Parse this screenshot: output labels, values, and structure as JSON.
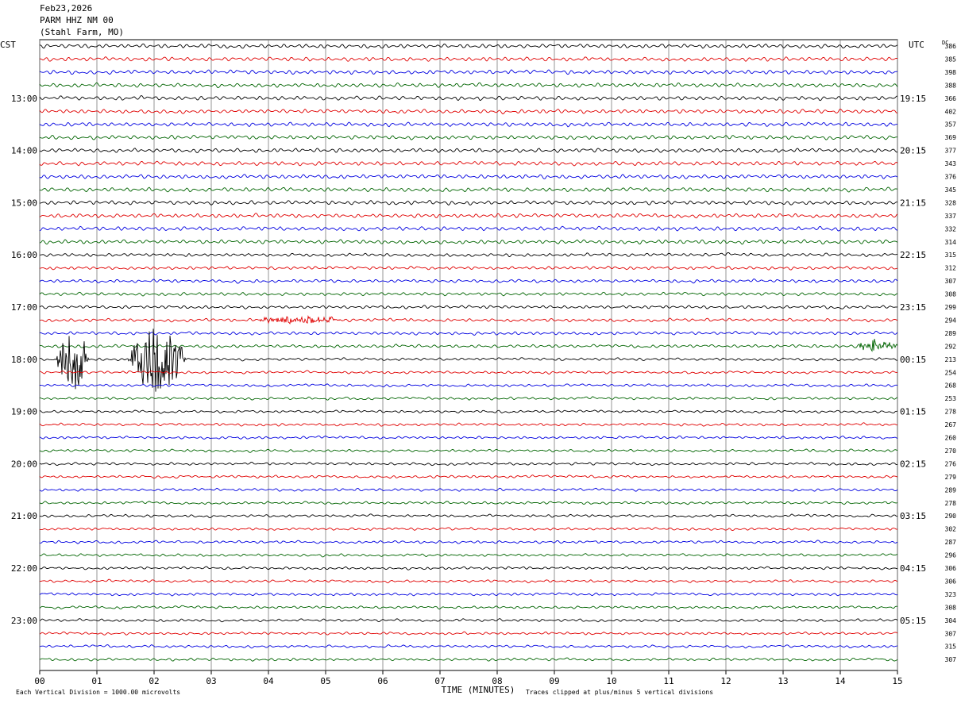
{
  "header": {
    "date": "Feb23,2026",
    "station": "PARM HHZ NM 00",
    "location": "(Stahl Farm, MO)"
  },
  "left_axis_title": "CST",
  "right_axis_title": "UTC",
  "dc_title": "DC",
  "chart_data": {
    "type": "line",
    "title": "",
    "xlabel": "TIME (MINUTES)",
    "xlim": [
      0,
      15
    ],
    "x_ticks": [
      "00",
      "01",
      "02",
      "03",
      "04",
      "05",
      "06",
      "07",
      "08",
      "09",
      "10",
      "11",
      "12",
      "13",
      "14",
      "15"
    ],
    "traces_per_hour": 4,
    "minutes_per_trace": 15,
    "trace_colors": [
      "#000000",
      "#e00000",
      "#0000e0",
      "#006400"
    ],
    "left_hour_labels": [
      "13:00",
      "14:00",
      "15:00",
      "16:00",
      "17:00",
      "18:00",
      "19:00",
      "20:00",
      "21:00",
      "22:00",
      "23:00"
    ],
    "right_hour_labels": [
      "19:15",
      "20:15",
      "21:15",
      "22:15",
      "23:15",
      "00:15",
      "01:15",
      "02:15",
      "03:15",
      "04:15",
      "05:15"
    ],
    "dc_offsets": [
      386,
      385,
      398,
      388,
      366,
      402,
      357,
      369,
      377,
      343,
      376,
      345,
      328,
      337,
      332,
      314,
      315,
      312,
      307,
      308,
      299,
      294,
      289,
      292,
      213,
      254,
      268,
      253,
      278,
      267,
      260,
      270,
      276,
      279,
      289,
      278,
      290,
      302,
      287,
      296,
      306,
      306,
      323,
      308,
      304,
      307,
      315,
      307
    ],
    "events": [
      {
        "trace": 24,
        "start_min": 0.3,
        "end_min": 0.85,
        "amplitude_divisions": 5
      },
      {
        "trace": 24,
        "start_min": 1.55,
        "end_min": 2.55,
        "amplitude_divisions": 5
      },
      {
        "trace": 23,
        "start_min": 14.3,
        "end_min": 15.0,
        "amplitude_divisions": 1
      },
      {
        "trace": 21,
        "start_min": 3.8,
        "end_min": 5.3,
        "amplitude_divisions": 0.5
      }
    ]
  },
  "footer": {
    "division_note": "Each Vertical Division = 1000.00 microvolts",
    "clip_note": "Traces clipped at plus/minus 5 vertical divisions"
  }
}
